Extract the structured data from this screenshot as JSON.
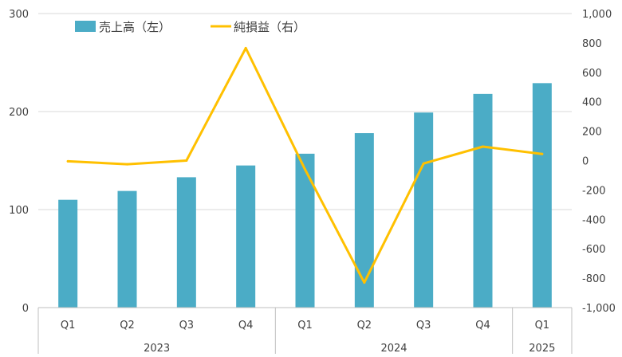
{
  "chart_data": {
    "type": "bar+line",
    "groups": [
      {
        "label": "2023",
        "quarters": [
          "Q1",
          "Q2",
          "Q3",
          "Q4"
        ]
      },
      {
        "label": "2024",
        "quarters": [
          "Q1",
          "Q2",
          "Q3",
          "Q4"
        ]
      },
      {
        "label": "2025",
        "quarters": [
          "Q1"
        ]
      }
    ],
    "categories": [
      "2023 Q1",
      "2023 Q2",
      "2023 Q3",
      "2023 Q4",
      "2024 Q1",
      "2024 Q2",
      "2024 Q3",
      "2024 Q4",
      "2025 Q1"
    ],
    "series": [
      {
        "name": "売上高（左）",
        "type": "bar",
        "axis": "left",
        "color": "#4BACC6",
        "values": [
          110,
          119,
          133,
          145,
          157,
          178,
          199,
          218,
          229
        ]
      },
      {
        "name": "純損益（右）",
        "type": "line",
        "axis": "right",
        "color": "#FFC000",
        "values": [
          -5,
          -25,
          0,
          765,
          -60,
          -830,
          -20,
          95,
          45
        ]
      }
    ],
    "y_left": {
      "min": 0,
      "max": 300,
      "ticks": [
        0,
        100,
        200,
        300
      ],
      "tick_labels": [
        "0",
        "100",
        "200",
        "300"
      ]
    },
    "y_right": {
      "min": -1000,
      "max": 1000,
      "ticks": [
        1000,
        800,
        600,
        400,
        200,
        0,
        -200,
        -400,
        -600,
        -800,
        -1000
      ],
      "tick_labels": [
        "1,000",
        "800",
        "600",
        "400",
        "200",
        "0",
        "-200",
        "-400",
        "-600",
        "-800",
        "-1,000"
      ]
    },
    "grid": true,
    "legend": "top-left"
  },
  "colors": {
    "grid": "#D9D9D9",
    "axis": "#BFBFBF",
    "text": "#404040"
  }
}
